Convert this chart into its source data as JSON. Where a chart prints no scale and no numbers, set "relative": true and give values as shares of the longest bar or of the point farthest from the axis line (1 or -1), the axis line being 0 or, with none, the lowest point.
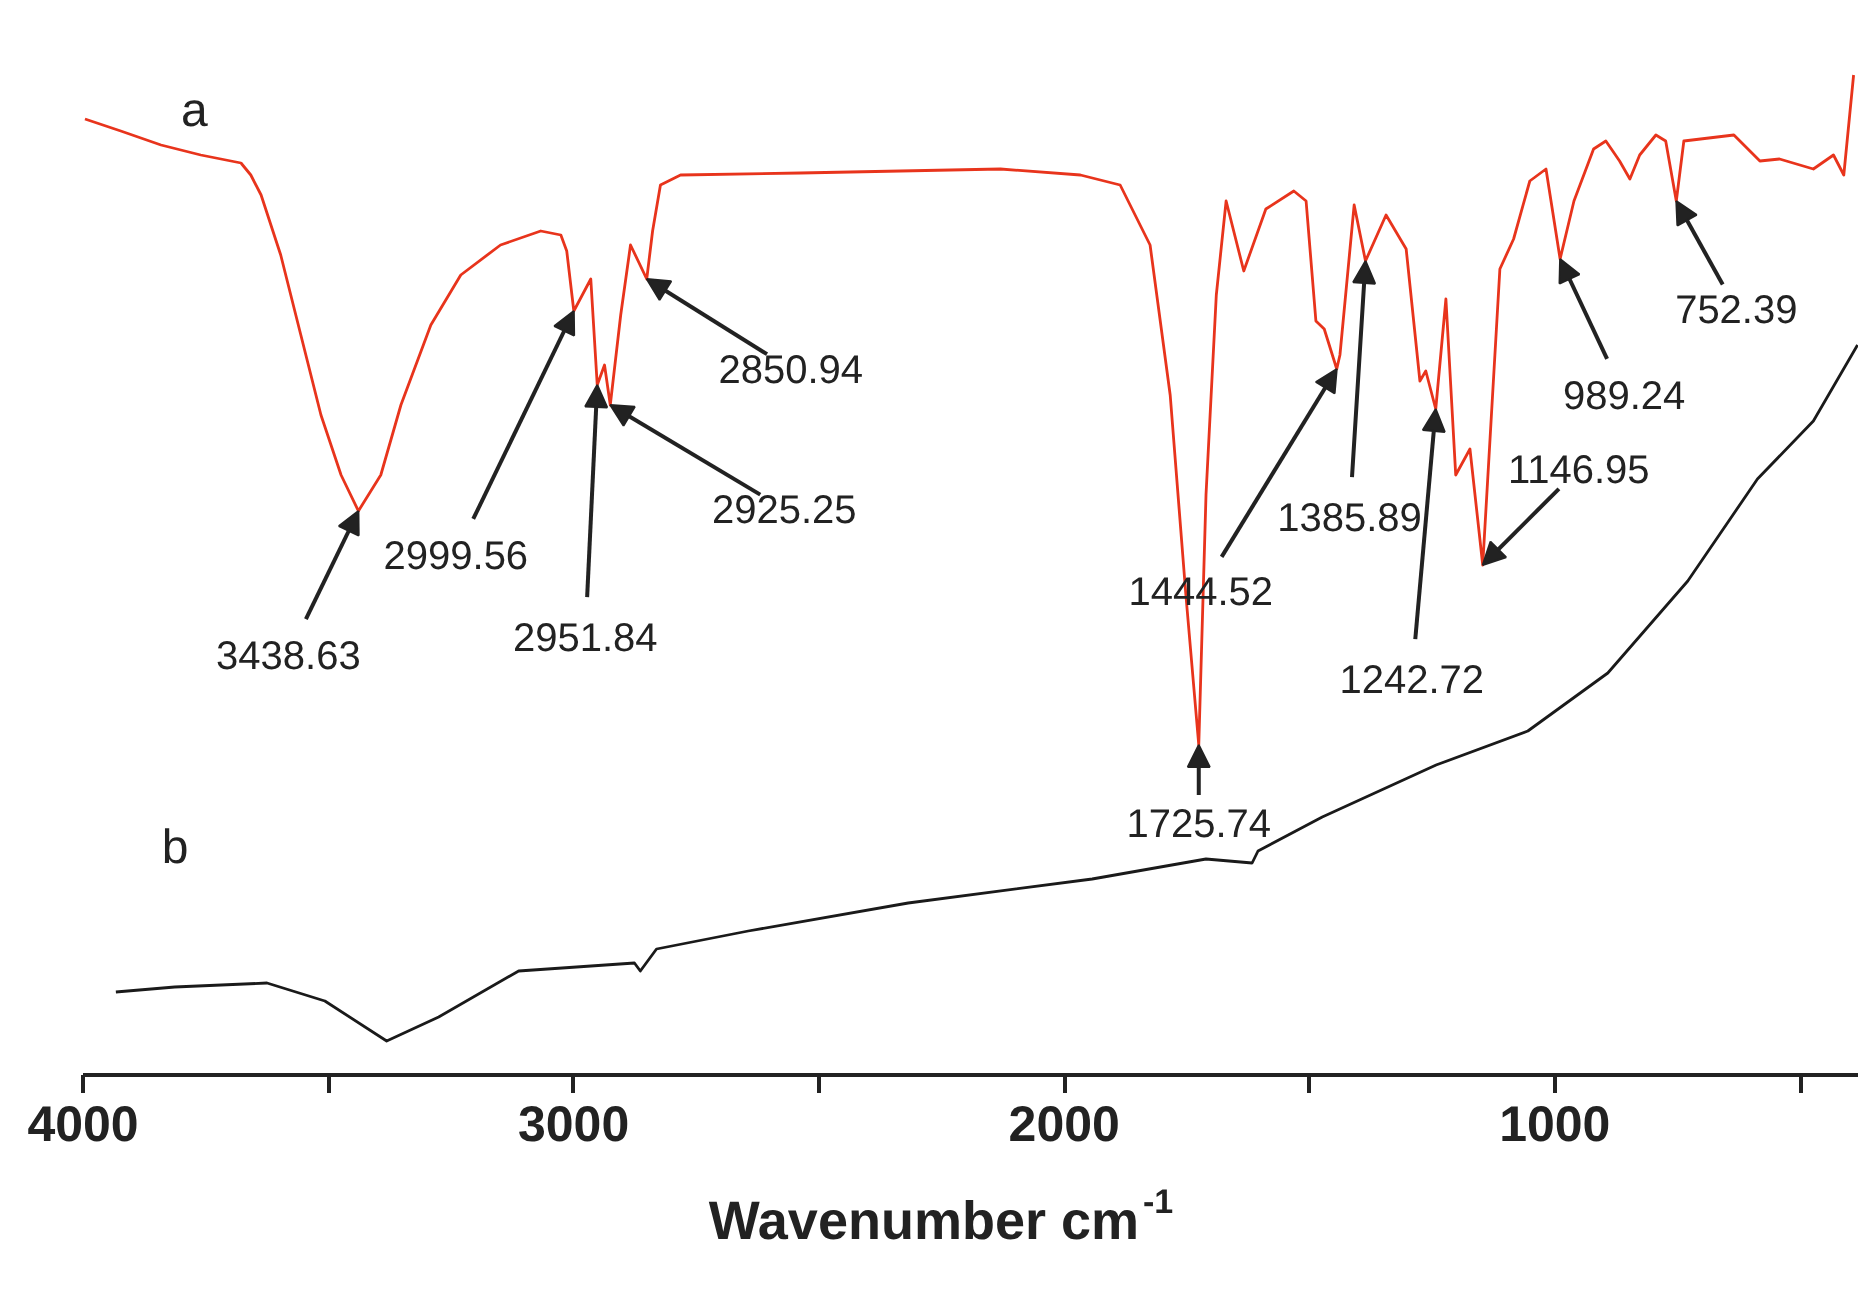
{
  "chart_data": {
    "type": "line",
    "xlabel": "Wavenumber cm$^{-1}$",
    "relative": true,
    "xlim": [
      4000,
      380
    ],
    "xticks": [
      4000,
      {
        "value": 3500,
        "label": null
      },
      3000,
      {
        "value": 2500,
        "label": null
      },
      2000,
      {
        "value": 1500,
        "label": null
      },
      1000,
      {
        "value": 500,
        "label": null
      }
    ],
    "series": [
      {
        "name": "a",
        "color": "#e8341c",
        "x": [
          3996,
          3923,
          3841,
          3760,
          3719,
          3678,
          3658,
          3637,
          3597,
          3556,
          3515,
          3474,
          3438.63,
          3393,
          3352,
          3291,
          3230,
          3149,
          3067,
          3026,
          3014,
          2999.56,
          2965,
          2951.84,
          2937,
          2925.25,
          2904,
          2884,
          2850.94,
          2839,
          2823,
          2782,
          2538,
          2130,
          1967,
          1886,
          1825,
          1784,
          1752,
          1725.74,
          1711,
          1690,
          1670,
          1634,
          1589,
          1532,
          1507,
          1487,
          1470,
          1444.52,
          1438,
          1409,
          1385.89,
          1344,
          1303,
          1275,
          1263,
          1242.72,
          1222,
          1202,
          1173,
          1146.95,
          1112,
          1084,
          1051,
          1018,
          989.24,
          961,
          921,
          896,
          868,
          847,
          827,
          794,
          774,
          752.39,
          737,
          635,
          582,
          542,
          473,
          432,
          411,
          399,
          391
        ],
        "values": [
          0.956,
          0.944,
          0.93,
          0.92,
          0.916,
          0.912,
          0.9,
          0.88,
          0.82,
          0.74,
          0.66,
          0.6,
          0.564,
          0.6,
          0.67,
          0.75,
          0.8,
          0.83,
          0.844,
          0.84,
          0.824,
          0.764,
          0.796,
          0.69,
          0.71,
          0.67,
          0.76,
          0.83,
          0.796,
          0.844,
          0.89,
          0.9,
          0.902,
          0.906,
          0.9,
          0.89,
          0.83,
          0.68,
          0.48,
          0.33,
          0.58,
          0.78,
          0.874,
          0.804,
          0.866,
          0.884,
          0.874,
          0.754,
          0.746,
          0.706,
          0.72,
          0.87,
          0.814,
          0.86,
          0.826,
          0.694,
          0.704,
          0.666,
          0.776,
          0.6,
          0.626,
          0.51,
          0.806,
          0.836,
          0.894,
          0.906,
          0.816,
          0.874,
          0.926,
          0.934,
          0.914,
          0.896,
          0.92,
          0.94,
          0.934,
          0.874,
          0.934,
          0.94,
          0.914,
          0.916,
          0.906,
          0.92,
          0.9,
          0.96,
          1.0
        ]
      },
      {
        "name": "b",
        "color": "#1a1a1a",
        "x": [
          3933,
          3813,
          3625,
          3507,
          3381,
          3275,
          3112,
          2876,
          2864,
          2831,
          2644,
          2318,
          1943,
          1711,
          1617,
          1605,
          1474,
          1242,
          1055,
          892,
          729,
          587,
          473,
          383
        ],
        "values": [
          0.083,
          0.088,
          0.092,
          0.074,
          0.034,
          0.058,
          0.104,
          0.112,
          0.104,
          0.126,
          0.144,
          0.172,
          0.196,
          0.216,
          0.212,
          0.224,
          0.258,
          0.31,
          0.344,
          0.402,
          0.494,
          0.596,
          0.654,
          0.73
        ]
      }
    ],
    "annotations": [
      {
        "text": "3438.63",
        "x": 3438.63,
        "y": 0.564
      },
      {
        "text": "2999.56",
        "x": 2999.56,
        "y": 0.764
      },
      {
        "text": "2951.84",
        "x": 2951.84,
        "y": 0.69
      },
      {
        "text": "2925.25",
        "x": 2925.25,
        "y": 0.67
      },
      {
        "text": "2850.94",
        "x": 2850.94,
        "y": 0.796
      },
      {
        "text": "1725.74",
        "x": 1725.74,
        "y": 0.33
      },
      {
        "text": "1444.52",
        "x": 1444.52,
        "y": 0.706
      },
      {
        "text": "1385.89",
        "x": 1385.89,
        "y": 0.814
      },
      {
        "text": "1242.72",
        "x": 1242.72,
        "y": 0.666
      },
      {
        "text": "1146.95",
        "x": 1146.95,
        "y": 0.51
      },
      {
        "text": "989.24",
        "x": 989.24,
        "y": 0.816
      },
      {
        "text": "752.39",
        "x": 752.39,
        "y": 0.874
      }
    ]
  }
}
